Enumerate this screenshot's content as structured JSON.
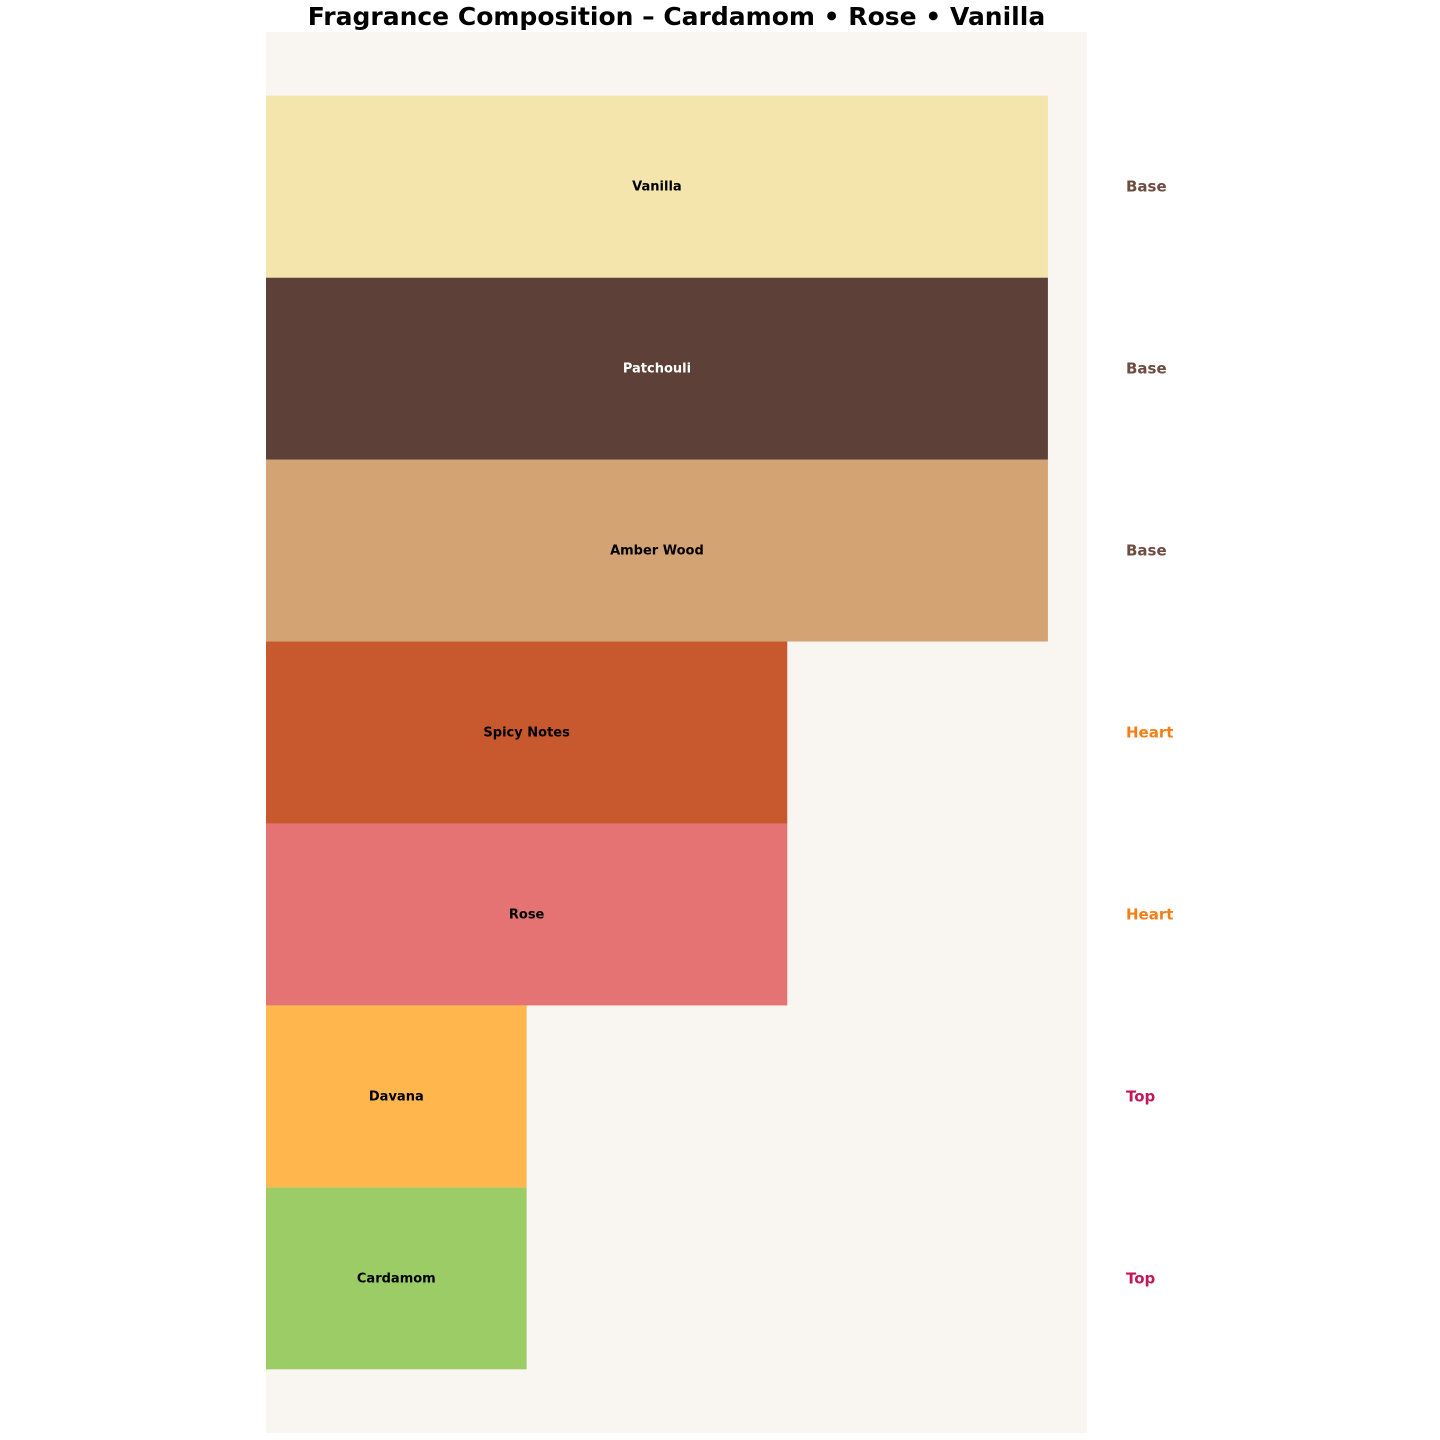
{
  "chart_data": {
    "type": "bar",
    "orientation": "horizontal",
    "title": "Fragrance Composition – Cardamom • Rose • Vanilla",
    "xlabel": "",
    "ylabel": "",
    "xlim": [
      0,
      3.15
    ],
    "ylim": [
      -0.85,
      6.85
    ],
    "grid": false,
    "axes_visible": false,
    "plot_background": "#F9F6F1",
    "categories": [
      "Cardamom",
      "Davana",
      "Rose",
      "Spicy Notes",
      "Amber Wood",
      "Patchouli",
      "Vanilla"
    ],
    "values": [
      1,
      1,
      2,
      2,
      3,
      3,
      3
    ],
    "tiers": [
      "Top",
      "Top",
      "Heart",
      "Heart",
      "Base",
      "Base",
      "Base"
    ],
    "bar_colors": [
      "#9CCC65",
      "#FFB74D",
      "#E57373",
      "#C8582E",
      "#D4A373",
      "#5D4037",
      "#F3E5AB"
    ],
    "bar_label_colors": [
      "#000000",
      "#000000",
      "#000000",
      "#000000",
      "#000000",
      "#FFFFFF",
      "#000000"
    ],
    "tier_colors": {
      "Top": "#C2185B",
      "Heart": "#F57F17",
      "Base": "#6D4C41"
    }
  }
}
